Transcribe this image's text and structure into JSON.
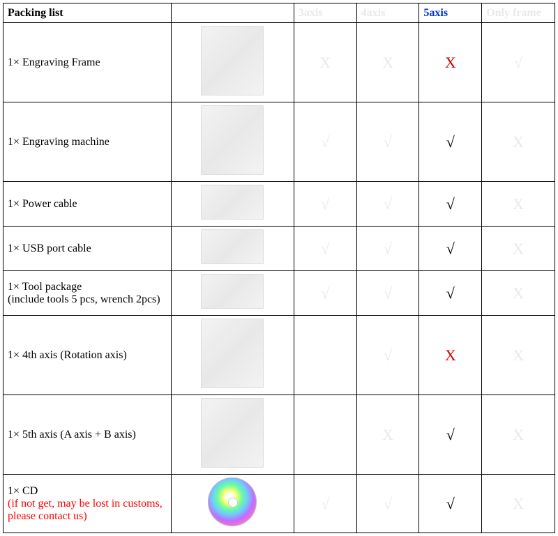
{
  "title": "Packing list",
  "columns": [
    {
      "id": "c3",
      "label": "3axis",
      "faded": true,
      "active": false
    },
    {
      "id": "c4",
      "label": "4axis",
      "faded": true,
      "active": false
    },
    {
      "id": "c5",
      "label": "5axis",
      "faded": false,
      "active": true
    },
    {
      "id": "cf",
      "label": "Only frame",
      "faded": true,
      "active": false
    }
  ],
  "legend": {
    "check": "√",
    "cross": "X"
  },
  "mark_colors": {
    "faded": "#e9e9e9",
    "check": "#000000",
    "cross_red": "#d40000",
    "header_active": "#0033cc",
    "note_red": "#ff0000"
  },
  "rows": [
    {
      "id": "engraving-frame",
      "label": "1× Engraving Frame",
      "note": "",
      "img_variant": "tall",
      "marks": {
        "c3": "cross_faded",
        "c4": "cross_faded",
        "c5": "cross_red",
        "cf": "check_faded"
      }
    },
    {
      "id": "engraving-machine",
      "label": "1× Engraving machine",
      "note": "",
      "img_variant": "tall",
      "marks": {
        "c3": "check_faded",
        "c4": "check_faded",
        "c5": "check",
        "cf": "cross_faded"
      }
    },
    {
      "id": "power-cable",
      "label": "1× Power cable",
      "note": "",
      "img_variant": "short",
      "marks": {
        "c3": "check_faded",
        "c4": "check_faded",
        "c5": "check",
        "cf": "cross_faded"
      }
    },
    {
      "id": "usb-port-cable",
      "label": "1× USB port cable",
      "note": "",
      "img_variant": "short",
      "marks": {
        "c3": "check_faded",
        "c4": "check_faded",
        "c5": "check",
        "cf": "cross_faded"
      }
    },
    {
      "id": "tool-package",
      "label": "1× Tool package",
      "note2": "(include tools 5 pcs, wrench 2pcs)",
      "note": "",
      "img_variant": "short",
      "marks": {
        "c3": "check_faded",
        "c4": "check_faded",
        "c5": "check",
        "cf": "cross_faded"
      }
    },
    {
      "id": "4th-axis",
      "label": "1× 4th axis (Rotation axis)",
      "note": "",
      "img_variant": "tall",
      "marks": {
        "c3": "blank",
        "c4": "check_faded",
        "c5": "cross_red",
        "cf": "cross_faded"
      }
    },
    {
      "id": "5th-axis",
      "label": "1× 5th axis (A axis + B axis)",
      "note": "",
      "img_variant": "tall",
      "marks": {
        "c3": "blank",
        "c4": "cross_faded",
        "c5": "check",
        "cf": "cross_faded"
      }
    },
    {
      "id": "cd",
      "label": "1× CD",
      "note": "(if not get, may be lost in customs, please contact us)",
      "img_variant": "cd",
      "marks": {
        "c3": "check_faded",
        "c4": "check_faded",
        "c5": "check",
        "cf": "cross_faded"
      }
    }
  ]
}
